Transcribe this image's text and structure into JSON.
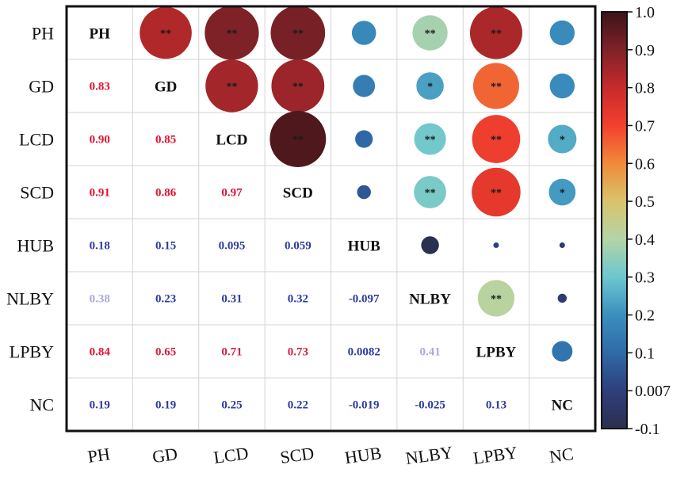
{
  "chart_data": {
    "type": "heatmap",
    "variables": [
      "PH",
      "GD",
      "LCD",
      "SCD",
      "HUB",
      "NLBY",
      "LPBY",
      "NC"
    ],
    "matrix": [
      [
        1,
        0.83,
        0.9,
        0.91,
        0.18,
        0.38,
        0.84,
        0.19
      ],
      [
        0.83,
        1,
        0.85,
        0.86,
        0.15,
        0.23,
        0.65,
        0.19
      ],
      [
        0.9,
        0.85,
        1,
        0.97,
        0.095,
        0.31,
        0.71,
        0.25
      ],
      [
        0.91,
        0.86,
        0.97,
        1,
        0.059,
        0.32,
        0.73,
        0.22
      ],
      [
        0.18,
        0.15,
        0.095,
        0.059,
        1,
        -0.097,
        0.0082,
        -0.019
      ],
      [
        0.38,
        0.23,
        0.31,
        0.32,
        -0.097,
        1,
        0.41,
        -0.025
      ],
      [
        0.84,
        0.65,
        0.71,
        0.73,
        0.0082,
        0.41,
        1,
        0.13
      ],
      [
        0.19,
        0.19,
        0.25,
        0.22,
        -0.019,
        -0.025,
        0.13,
        1
      ]
    ],
    "lower_labels": [
      [
        "GD",
        "0.83"
      ],
      [
        "LCD",
        "0.90"
      ],
      [
        "LCD",
        "0.85"
      ],
      [
        "SCD",
        "0.91"
      ],
      [
        "SCD",
        "0.86"
      ],
      [
        "SCD",
        "0.97"
      ],
      [
        "HUB",
        "0.18"
      ],
      [
        "HUB",
        "0.15"
      ],
      [
        "HUB",
        "0.095"
      ],
      [
        "HUB",
        "0.059"
      ],
      [
        "NLBY",
        "0.38"
      ],
      [
        "NLBY",
        "0.23"
      ],
      [
        "NLBY",
        "0.31"
      ],
      [
        "NLBY",
        "0.32"
      ],
      [
        "NLBY",
        "-0.097"
      ],
      [
        "LPBY",
        "0.84"
      ],
      [
        "LPBY",
        "0.65"
      ],
      [
        "LPBY",
        "0.71"
      ],
      [
        "LPBY",
        "0.73"
      ],
      [
        "LPBY",
        "0.0082"
      ],
      [
        "LPBY",
        "0.41"
      ],
      [
        "NC",
        "0.19"
      ],
      [
        "NC",
        "0.19"
      ],
      [
        "NC",
        "0.25"
      ],
      [
        "NC",
        "0.22"
      ],
      [
        "NC",
        "-0.019"
      ],
      [
        "NC",
        "-0.025"
      ],
      [
        "NC",
        "0.13"
      ]
    ],
    "value_text": [
      [
        "",
        "",
        "",
        "",
        "",
        "",
        "",
        ""
      ],
      [
        "0.83",
        "",
        "",
        "",
        "",
        "",
        "",
        ""
      ],
      [
        "0.90",
        "0.85",
        "",
        "",
        "",
        "",
        "",
        ""
      ],
      [
        "0.91",
        "0.86",
        "0.97",
        "",
        "",
        "",
        "",
        ""
      ],
      [
        "0.18",
        "0.15",
        "0.095",
        "0.059",
        "",
        "",
        "",
        ""
      ],
      [
        "0.38",
        "0.23",
        "0.31",
        "0.32",
        "-0.097",
        "",
        "",
        ""
      ],
      [
        "0.84",
        "0.65",
        "0.71",
        "0.73",
        "0.0082",
        "0.41",
        "",
        ""
      ],
      [
        "0.19",
        "0.19",
        "0.25",
        "0.22",
        "-0.019",
        "-0.025",
        "0.13",
        ""
      ]
    ],
    "significance": [
      [
        "",
        "**",
        "**",
        "**",
        "",
        "**",
        "**",
        ""
      ],
      [
        "",
        "",
        "**",
        "**",
        "",
        "*",
        "**",
        ""
      ],
      [
        "",
        "",
        "",
        "**",
        "",
        "**",
        "**",
        "*"
      ],
      [
        "",
        "",
        "",
        "",
        "",
        "**",
        "**",
        "*"
      ],
      [
        "",
        "",
        "",
        "",
        "",
        "",
        "",
        ""
      ],
      [
        "",
        "",
        "",
        "",
        "",
        "",
        "**",
        ""
      ],
      [
        "",
        "",
        "",
        "",
        "",
        "",
        "",
        ""
      ],
      [
        "",
        "",
        "",
        "",
        "",
        "",
        "",
        ""
      ]
    ],
    "upper_circle_values": [
      [
        null,
        0.83,
        0.9,
        0.91,
        0.18,
        0.38,
        0.84,
        0.19
      ],
      [
        null,
        null,
        0.85,
        0.86,
        0.15,
        0.23,
        0.65,
        0.19
      ],
      [
        null,
        null,
        null,
        0.97,
        0.095,
        0.31,
        0.71,
        0.25
      ],
      [
        null,
        null,
        null,
        null,
        0.059,
        0.32,
        0.73,
        0.22
      ],
      [
        null,
        null,
        null,
        null,
        null,
        -0.097,
        0.0082,
        -0.019
      ],
      [
        null,
        null,
        null,
        null,
        null,
        null,
        0.41,
        -0.025
      ],
      [
        null,
        null,
        null,
        null,
        null,
        null,
        null,
        0.13
      ],
      [
        null,
        null,
        null,
        null,
        null,
        null,
        null,
        null
      ]
    ],
    "colorbar": {
      "tick_labels": [
        "1.0",
        "0.9",
        "0.8",
        "0.7",
        "0.6",
        "0.5",
        "0.4",
        "0.3",
        "0.2",
        "0.1",
        "0.007",
        "-0.1"
      ],
      "tick_values": [
        1.0,
        0.9,
        0.8,
        0.7,
        0.6,
        0.5,
        0.4,
        0.3,
        0.2,
        0.1,
        0.007,
        -0.1
      ],
      "stops": [
        {
          "v": -0.1,
          "c": "#2b2f4f"
        },
        {
          "v": 0.0,
          "c": "#2e3f7a"
        },
        {
          "v": 0.1,
          "c": "#2f6aa8"
        },
        {
          "v": 0.2,
          "c": "#3a8fbd"
        },
        {
          "v": 0.3,
          "c": "#6cc7cf"
        },
        {
          "v": 0.4,
          "c": "#b4d4a6"
        },
        {
          "v": 0.5,
          "c": "#d8c46c"
        },
        {
          "v": 0.6,
          "c": "#f08a3a"
        },
        {
          "v": 0.7,
          "c": "#f2402e"
        },
        {
          "v": 0.8,
          "c": "#c72a2c"
        },
        {
          "v": 0.9,
          "c": "#7e2228"
        },
        {
          "v": 1.0,
          "c": "#3b1418"
        }
      ],
      "range": [
        -0.1,
        1.0
      ]
    },
    "text_colors": {
      "strong_positive": "#e01030",
      "moderate_positive": "#d42040",
      "weak": "#2e3aa0",
      "faint": "#a8a8e0"
    },
    "xlabel": "",
    "ylabel": "",
    "title": ""
  }
}
